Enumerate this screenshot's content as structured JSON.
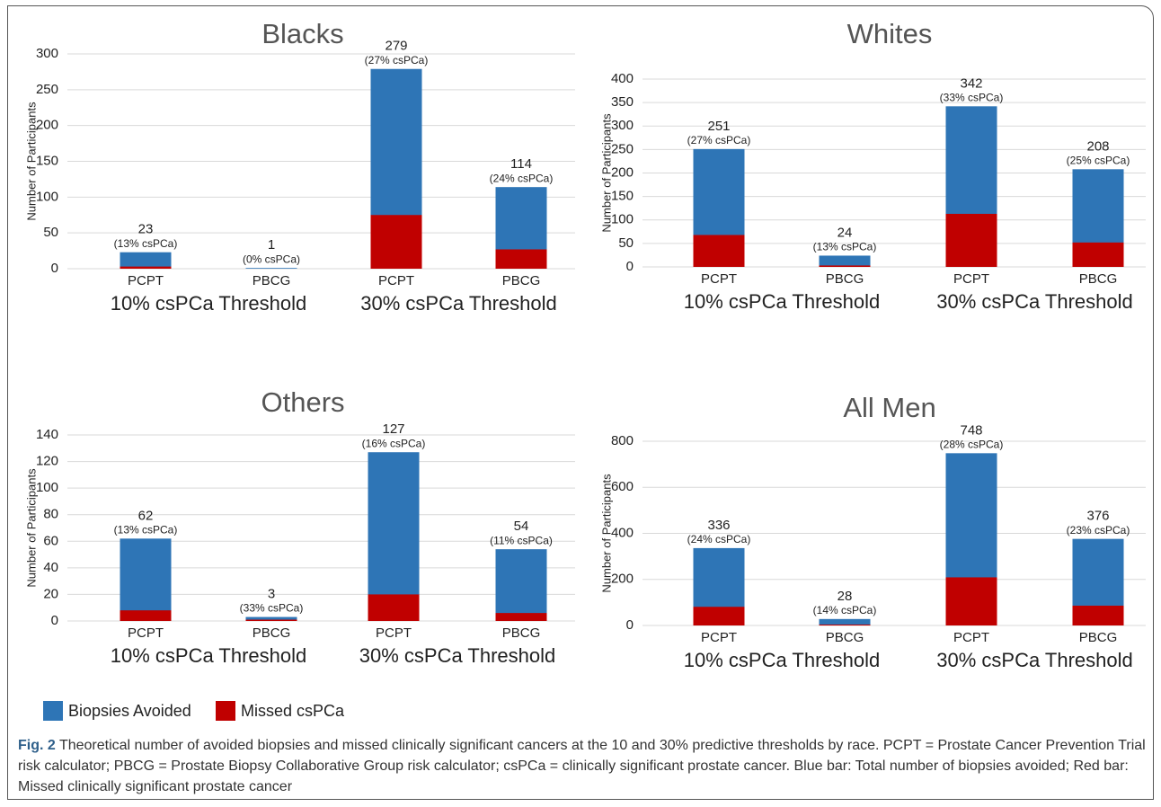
{
  "chart_data": [
    {
      "type": "bar",
      "title": "Blacks",
      "ylabel": "Number of Participants",
      "categories": [
        "PCPT",
        "PBCG",
        "PCPT",
        "PBCG"
      ],
      "groups": [
        "10% csPCa Threshold",
        "30% csPCa Threshold"
      ],
      "series": [
        {
          "name": "Biopsies Avoided",
          "color": "#2e75b6",
          "values": [
            23,
            1,
            279,
            114
          ]
        },
        {
          "name": "Missed csPCa",
          "color": "#c00000",
          "values": [
            3,
            0,
            75,
            27
          ]
        }
      ],
      "annotations": [
        "(13% csPCa)",
        "(0% csPCa)",
        "(27% csPCa)",
        "(24% csPCa)"
      ],
      "ylim": [
        0,
        300
      ],
      "yticks": [
        0,
        50,
        100,
        150,
        200,
        250,
        300
      ],
      "grid": true
    },
    {
      "type": "bar",
      "title": "Whites",
      "ylabel": "Number of Participants",
      "categories": [
        "PCPT",
        "PBCG",
        "PCPT",
        "PBCG"
      ],
      "groups": [
        "10% csPCa Threshold",
        "30% csPCa Threshold"
      ],
      "series": [
        {
          "values": [
            251,
            24,
            342,
            208
          ]
        },
        {
          "values": [
            68,
            3,
            113,
            52
          ]
        }
      ],
      "annotations": [
        "(27% csPCa)",
        "(13% csPCa)",
        "(33% csPCa)",
        "(25% csPCa)"
      ],
      "ylim": [
        0,
        400
      ],
      "yticks": [
        0,
        50,
        100,
        150,
        200,
        250,
        300,
        350,
        400
      ],
      "grid": true
    },
    {
      "type": "bar",
      "title": "Others",
      "ylabel": "Number of Participants",
      "categories": [
        "PCPT",
        "PBCG",
        "PCPT",
        "PBCG"
      ],
      "groups": [
        "10% csPCa Threshold",
        "30% csPCa Threshold"
      ],
      "series": [
        {
          "values": [
            62,
            3,
            127,
            54
          ]
        },
        {
          "values": [
            8,
            1,
            20,
            6
          ]
        }
      ],
      "annotations": [
        "(13% csPCa)",
        "(33% csPCa)",
        "(16% csPCa)",
        "(11% csPCa)"
      ],
      "ylim": [
        0,
        140
      ],
      "yticks": [
        0,
        20,
        40,
        60,
        80,
        100,
        120,
        140
      ],
      "grid": true
    },
    {
      "type": "bar",
      "title": "All Men",
      "ylabel": "Number of Participants",
      "categories": [
        "PCPT",
        "PBCG",
        "PCPT",
        "PBCG"
      ],
      "groups": [
        "10% csPCa Threshold",
        "30% csPCa Threshold"
      ],
      "series": [
        {
          "values": [
            336,
            28,
            748,
            376
          ]
        },
        {
          "values": [
            81,
            4,
            209,
            86
          ]
        }
      ],
      "annotations": [
        "(24% csPCa)",
        "(14% csPCa)",
        "(28% csPCa)",
        "(23% csPCa)"
      ],
      "ylim": [
        0,
        800
      ],
      "yticks": [
        0,
        200,
        400,
        600,
        800
      ],
      "grid": true
    }
  ],
  "caption": {
    "label": "Fig. 2",
    "text": "Theoretical number of avoided biopsies and missed clinically significant cancers at the 10 and 30% predictive thresholds by race. PCPT = Prostate Cancer Prevention Trial risk calculator; PBCG = Prostate Biopsy Collaborative Group risk calculator; csPCa = clinically significant prostate cancer. Blue bar: Total number of biopsies avoided; Red bar: Missed clinically significant prostate cancer"
  }
}
